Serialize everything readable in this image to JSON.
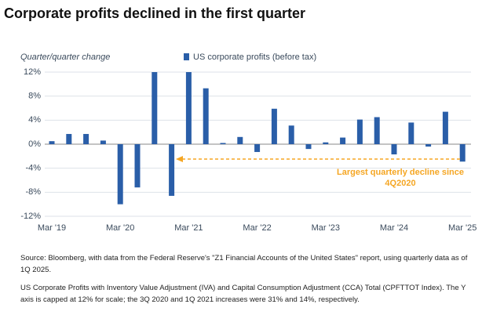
{
  "chart_data": {
    "type": "bar",
    "title": "Corporate profits declined in the first quarter",
    "y_axis_label": "Quarter/quarter change",
    "categories": [
      "Mar '19",
      null,
      null,
      null,
      "Mar '20",
      null,
      null,
      null,
      "Mar '21",
      null,
      null,
      null,
      "Mar '22",
      null,
      null,
      null,
      "Mar '23",
      null,
      null,
      null,
      "Mar '24",
      null,
      null,
      null,
      "Mar '25"
    ],
    "series": [
      {
        "name": "US corporate profits (before tax)",
        "color": "#2a5ea8",
        "values": [
          0.5,
          1.7,
          1.7,
          0.6,
          -10,
          -7.2,
          12,
          -8.6,
          12,
          9.3,
          0.2,
          1.2,
          -1.3,
          5.9,
          3.1,
          -0.8,
          0.3,
          1.1,
          4.1,
          4.5,
          -1.7,
          3.6,
          -0.4,
          5.4,
          -2.9
        ]
      }
    ],
    "ylim": [
      -12,
      12
    ],
    "yticks": [
      {
        "value": 12,
        "label": "12%"
      },
      {
        "value": 8,
        "label": "8%"
      },
      {
        "value": 4,
        "label": "4%"
      },
      {
        "value": 0,
        "label": "0%"
      },
      {
        "value": -4,
        "label": "-4%"
      },
      {
        "value": -8,
        "label": "-8%"
      },
      {
        "value": -12,
        "label": "-12%"
      }
    ],
    "grid": true,
    "annotation_lines": [
      "Largest quarterly decline since",
      "4Q2020"
    ],
    "annotation_color": "#f5a623",
    "source": "Source: Bloomberg, with data from the Federal Reserve's \"Z1 Financial Accounts of the United States\" report, using quarterly data as of 1Q 2025.",
    "note": "US Corporate Profits with Inventory Value Adjustment (IVA) and Capital Consumption Adjustment (CCA) Total (CPFTTOT Index). The Y axis is capped at 12% for scale; the 3Q 2020 and 1Q 2021 increases were 31% and 14%, respectively."
  }
}
